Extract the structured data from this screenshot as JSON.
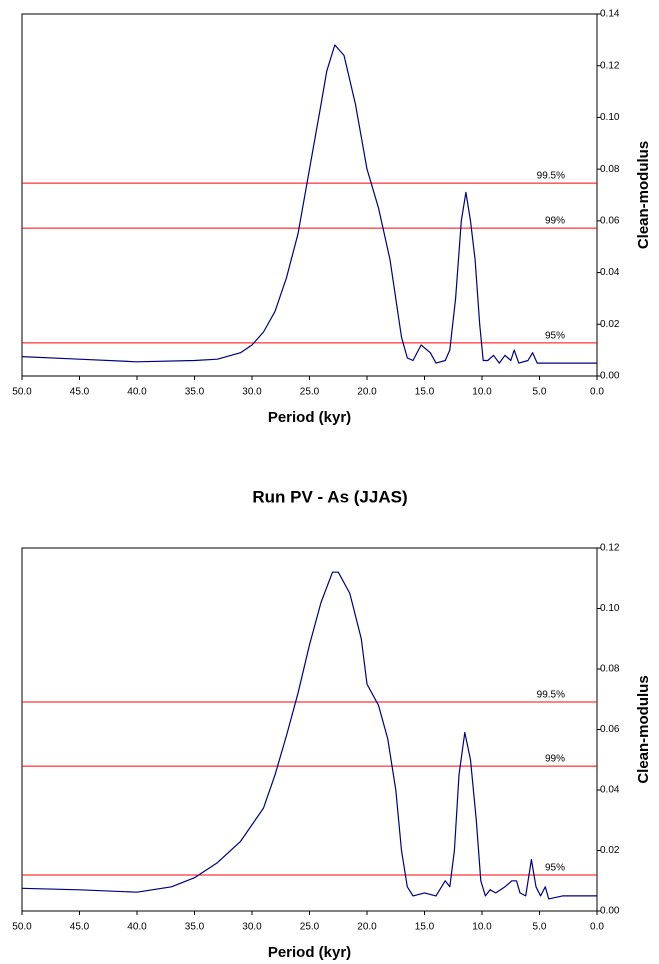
{
  "chart_data": [
    {
      "type": "line",
      "x_label": "Period (kyr)",
      "y_label": "Clean-modulus",
      "color": "#000080",
      "x": [
        50,
        45,
        40,
        35,
        33,
        31,
        30,
        29,
        28,
        27,
        26,
        25,
        24,
        23.5,
        22.8,
        22,
        21,
        20,
        19,
        18,
        17,
        16.5,
        16,
        15.3,
        14.5,
        14,
        13.2,
        12.8,
        12.3,
        11.8,
        11.4,
        11,
        10.6,
        10.2,
        9.9,
        9.5,
        9,
        8.5,
        8,
        7.5,
        7.2,
        6.8,
        6,
        5.6,
        5.2,
        4,
        2,
        0
      ],
      "values": [
        0.0075,
        0.0065,
        0.0055,
        0.006,
        0.0065,
        0.009,
        0.012,
        0.017,
        0.025,
        0.038,
        0.055,
        0.08,
        0.105,
        0.118,
        0.128,
        0.124,
        0.105,
        0.08,
        0.065,
        0.045,
        0.015,
        0.007,
        0.006,
        0.012,
        0.009,
        0.005,
        0.006,
        0.01,
        0.03,
        0.06,
        0.071,
        0.06,
        0.045,
        0.02,
        0.006,
        0.006,
        0.008,
        0.005,
        0.008,
        0.006,
        0.01,
        0.005,
        0.006,
        0.009,
        0.005,
        0.005,
        0.005,
        0.005
      ],
      "xlim": [
        50,
        0
      ],
      "xticks": [
        {
          "value": 50,
          "label": "50.0"
        },
        {
          "value": 45,
          "label": "45.0"
        },
        {
          "value": 40,
          "label": "40.0"
        },
        {
          "value": 35,
          "label": "35.0"
        },
        {
          "value": 30,
          "label": "30.0"
        },
        {
          "value": 25,
          "label": "25.0"
        },
        {
          "value": 20,
          "label": "20.0"
        },
        {
          "value": 15,
          "label": "15.0"
        },
        {
          "value": 10,
          "label": "10.0"
        },
        {
          "value": 5,
          "label": "5.0"
        },
        {
          "value": 0,
          "label": "0.0"
        }
      ],
      "ylim": [
        0,
        0.14
      ],
      "yticks": [
        {
          "value": 0,
          "label": "0.00"
        },
        {
          "value": 0.02,
          "label": "0.02"
        },
        {
          "value": 0.04,
          "label": "0.04"
        },
        {
          "value": 0.06,
          "label": "0.06"
        },
        {
          "value": 0.08,
          "label": "0.08"
        },
        {
          "value": 0.1,
          "label": "0.10"
        },
        {
          "value": 0.12,
          "label": "0.12"
        },
        {
          "value": 0.14,
          "label": "0.14"
        }
      ],
      "reference_lines": [
        {
          "label": "99.5%",
          "value": 0.0746,
          "color": "#ff0000"
        },
        {
          "label": "99%",
          "value": 0.0572,
          "color": "#ff0000"
        },
        {
          "label": "95%",
          "value": 0.0128,
          "color": "#ff0000"
        }
      ]
    },
    {
      "type": "line",
      "title": "Run PV - As (JJAS)",
      "x_label": "Period (kyr)",
      "y_label": "Clean-modulus",
      "color": "#000080",
      "x": [
        50,
        45,
        40,
        37,
        35,
        33,
        31,
        29,
        28,
        27,
        26,
        25,
        24,
        23,
        22.5,
        21.5,
        20.5,
        20,
        19,
        18.2,
        17.5,
        17,
        16.5,
        16,
        15,
        14,
        13.2,
        12.8,
        12.4,
        12,
        11.5,
        11,
        10.5,
        10.1,
        9.7,
        9.3,
        8.8,
        8,
        7.4,
        7,
        6.7,
        6.2,
        5.7,
        5.3,
        4.9,
        4.5,
        4.2,
        3,
        0
      ],
      "values": [
        0.0075,
        0.007,
        0.0062,
        0.008,
        0.011,
        0.016,
        0.023,
        0.034,
        0.045,
        0.058,
        0.072,
        0.088,
        0.102,
        0.112,
        0.112,
        0.105,
        0.09,
        0.075,
        0.068,
        0.057,
        0.04,
        0.02,
        0.008,
        0.005,
        0.006,
        0.005,
        0.01,
        0.008,
        0.02,
        0.045,
        0.059,
        0.05,
        0.03,
        0.01,
        0.005,
        0.007,
        0.006,
        0.008,
        0.01,
        0.01,
        0.006,
        0.005,
        0.017,
        0.008,
        0.005,
        0.008,
        0.004,
        0.005,
        0.005
      ],
      "xlim": [
        50,
        0
      ],
      "xticks": [
        {
          "value": 50,
          "label": "50.0"
        },
        {
          "value": 45,
          "label": "45.0"
        },
        {
          "value": 40,
          "label": "40.0"
        },
        {
          "value": 35,
          "label": "35.0"
        },
        {
          "value": 30,
          "label": "30.0"
        },
        {
          "value": 25,
          "label": "25.0"
        },
        {
          "value": 20,
          "label": "20.0"
        },
        {
          "value": 15,
          "label": "15.0"
        },
        {
          "value": 10,
          "label": "10.0"
        },
        {
          "value": 5,
          "label": "5.0"
        },
        {
          "value": 0,
          "label": "0.0"
        }
      ],
      "ylim": [
        0,
        0.12
      ],
      "yticks": [
        {
          "value": 0,
          "label": "0.00"
        },
        {
          "value": 0.02,
          "label": "0.02"
        },
        {
          "value": 0.04,
          "label": "0.04"
        },
        {
          "value": 0.06,
          "label": "0.06"
        },
        {
          "value": 0.08,
          "label": "0.08"
        },
        {
          "value": 0.1,
          "label": "0.10"
        },
        {
          "value": 0.12,
          "label": "0.12"
        }
      ],
      "reference_lines": [
        {
          "label": "99.5%",
          "value": 0.0691,
          "color": "#ff0000"
        },
        {
          "label": "99%",
          "value": 0.0479,
          "color": "#ff0000"
        },
        {
          "label": "95%",
          "value": 0.0119,
          "color": "#ff0000"
        }
      ]
    }
  ]
}
